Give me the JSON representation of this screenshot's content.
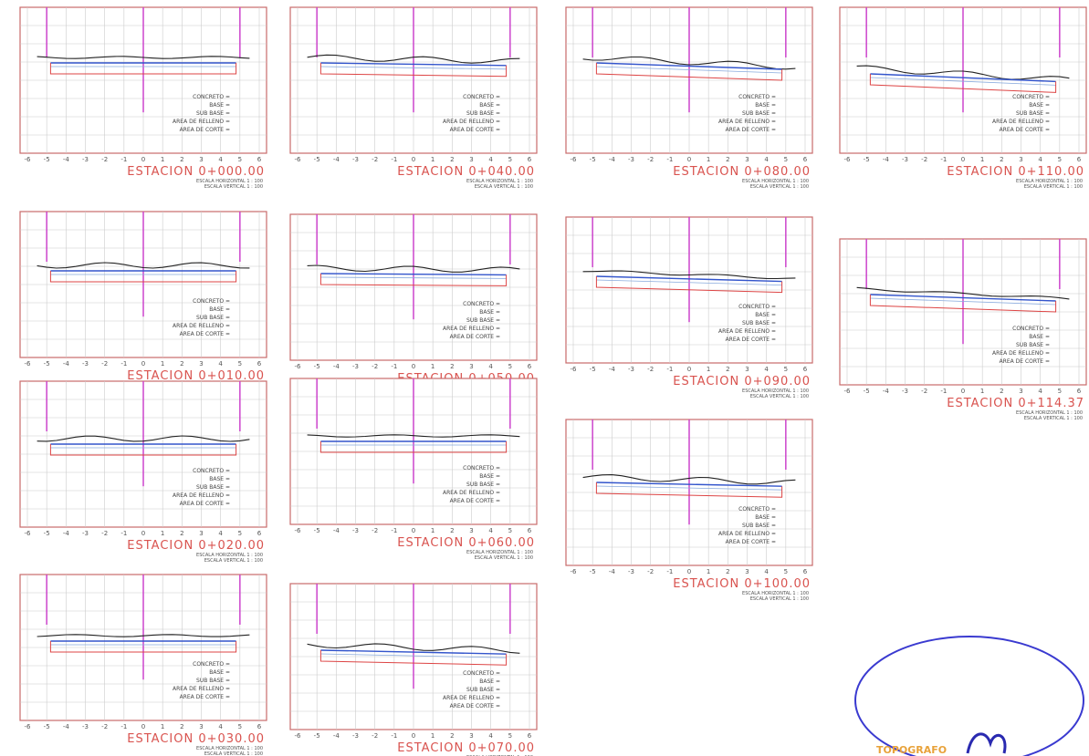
{
  "sheet": {
    "x_ticks": [
      -6,
      -5,
      -4,
      -3,
      -2,
      -1,
      0,
      1,
      2,
      3,
      4,
      5,
      6
    ],
    "legend": [
      "CONCRETO =",
      "BASE =",
      "SUB BASE =",
      "AREA DE RELLENO =",
      "AREA DE CORTE ="
    ],
    "scale_h": "ESCALA HORIZONTAL 1 : 100",
    "scale_v": "ESCALA VERTICAL 1 : 100",
    "panels": [
      {
        "station": "ESTACION 0+000.00"
      },
      {
        "station": "ESTACION 0+010.00"
      },
      {
        "station": "ESTACION 0+020.00"
      },
      {
        "station": "ESTACION 0+030.00"
      },
      {
        "station": "ESTACION 0+040.00"
      },
      {
        "station": "ESTACION 0+050.00"
      },
      {
        "station": "ESTACION 0+060.00"
      },
      {
        "station": "ESTACION 0+070.00"
      },
      {
        "station": "ESTACION 0+080.00"
      },
      {
        "station": "ESTACION 0+090.00"
      },
      {
        "station": "ESTACION 0+100.00"
      },
      {
        "station": "ESTACION 0+110.00"
      },
      {
        "station": "ESTACION 0+114.37"
      }
    ],
    "stamp": "TOPOGRAFO"
  }
}
